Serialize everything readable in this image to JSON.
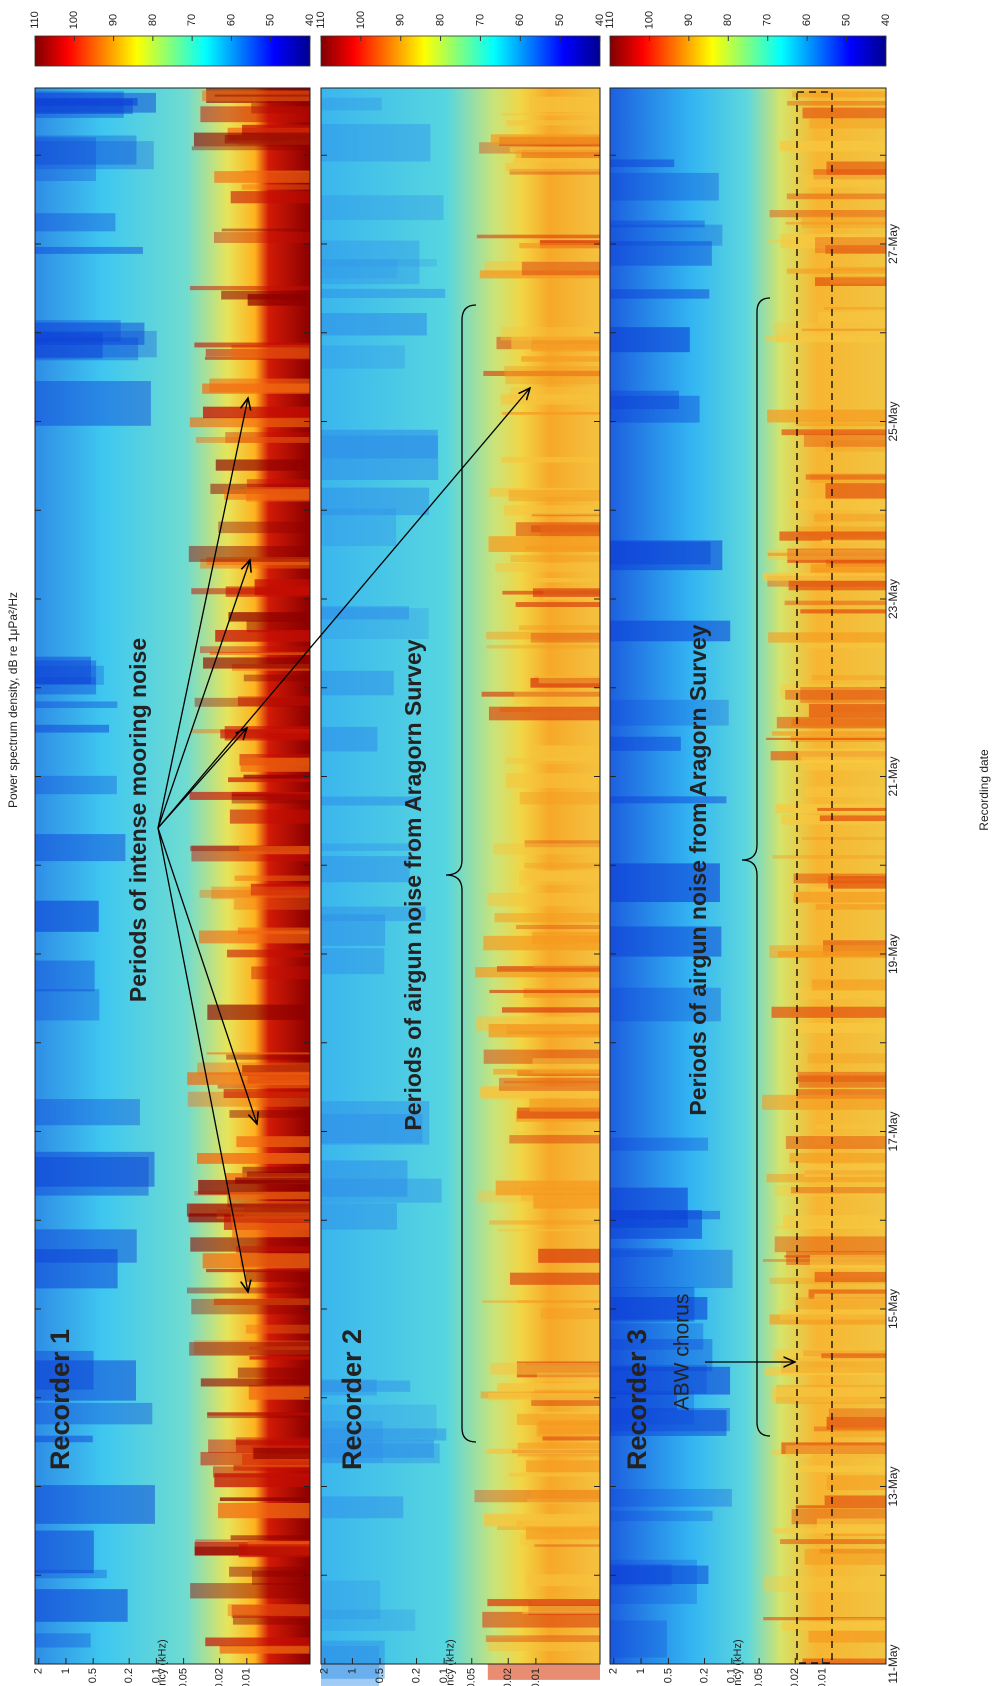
{
  "chart_data": {
    "type": "spectrogram",
    "title": "Power spectrum density, dB re 1μPa²/Hz",
    "x_label": "Recording date",
    "y_label": "Frequency (kHz)",
    "x_tick_labels": [
      "11-May",
      "13-May",
      "15-May",
      "17-May",
      "19-May",
      "21-May",
      "23-May",
      "25-May",
      "27-May"
    ],
    "y_scale": "log",
    "ylim": [
      0.002,
      2.2
    ],
    "yticks": [
      2,
      1,
      0.5,
      0.2,
      0.1,
      0.05,
      0.02,
      0.01
    ],
    "colorbar": {
      "lim": [
        40,
        110
      ],
      "ticks": [
        110,
        100,
        90,
        80,
        70,
        60,
        50,
        40
      ]
    },
    "panels": [
      {
        "label": "Recorder 1",
        "annotations": [
          "Periods of intense mooring noise"
        ]
      },
      {
        "label": "Recorder 2",
        "annotations": [
          "Periods of airgun noise from Aragorn Survey"
        ]
      },
      {
        "label": "Recorder 3",
        "annotations": [
          "Periods of airgun noise from Aragorn Survey",
          "ABW chorus"
        ]
      }
    ]
  }
}
